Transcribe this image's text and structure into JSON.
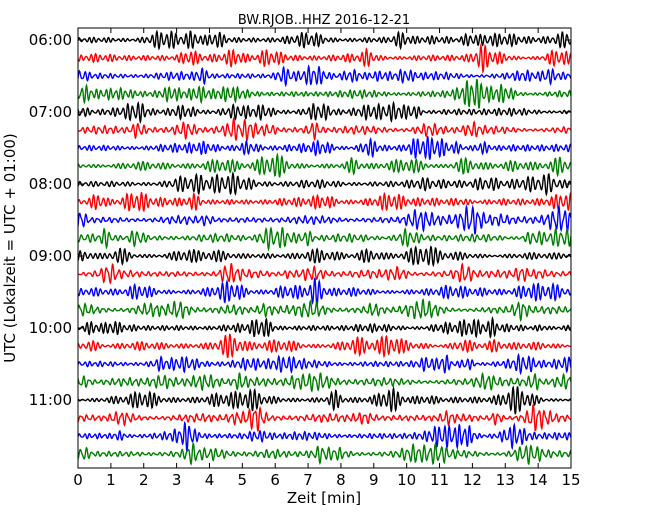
{
  "chart_data": {
    "type": "line",
    "title": "BW.RJOB..HHZ 2016-12-21",
    "xlabel": "Zeit  [min]",
    "ylabel": "UTC (Lokalzeit = UTC + 01:00)",
    "xlim": [
      0,
      15
    ],
    "x_ticks": [
      "0",
      "1",
      "2",
      "3",
      "4",
      "5",
      "6",
      "7",
      "8",
      "9",
      "10",
      "11",
      "12",
      "13",
      "14",
      "15"
    ],
    "y_ticks": [
      "06:00",
      "07:00",
      "08:00",
      "09:00",
      "10:00",
      "11:00"
    ],
    "trace_start": "06:00",
    "trace_interval_min": 15,
    "trace_count": 24,
    "trace_colors": [
      "#000000",
      "#ff0000",
      "#0000ff",
      "#008000"
    ],
    "grid": false
  }
}
